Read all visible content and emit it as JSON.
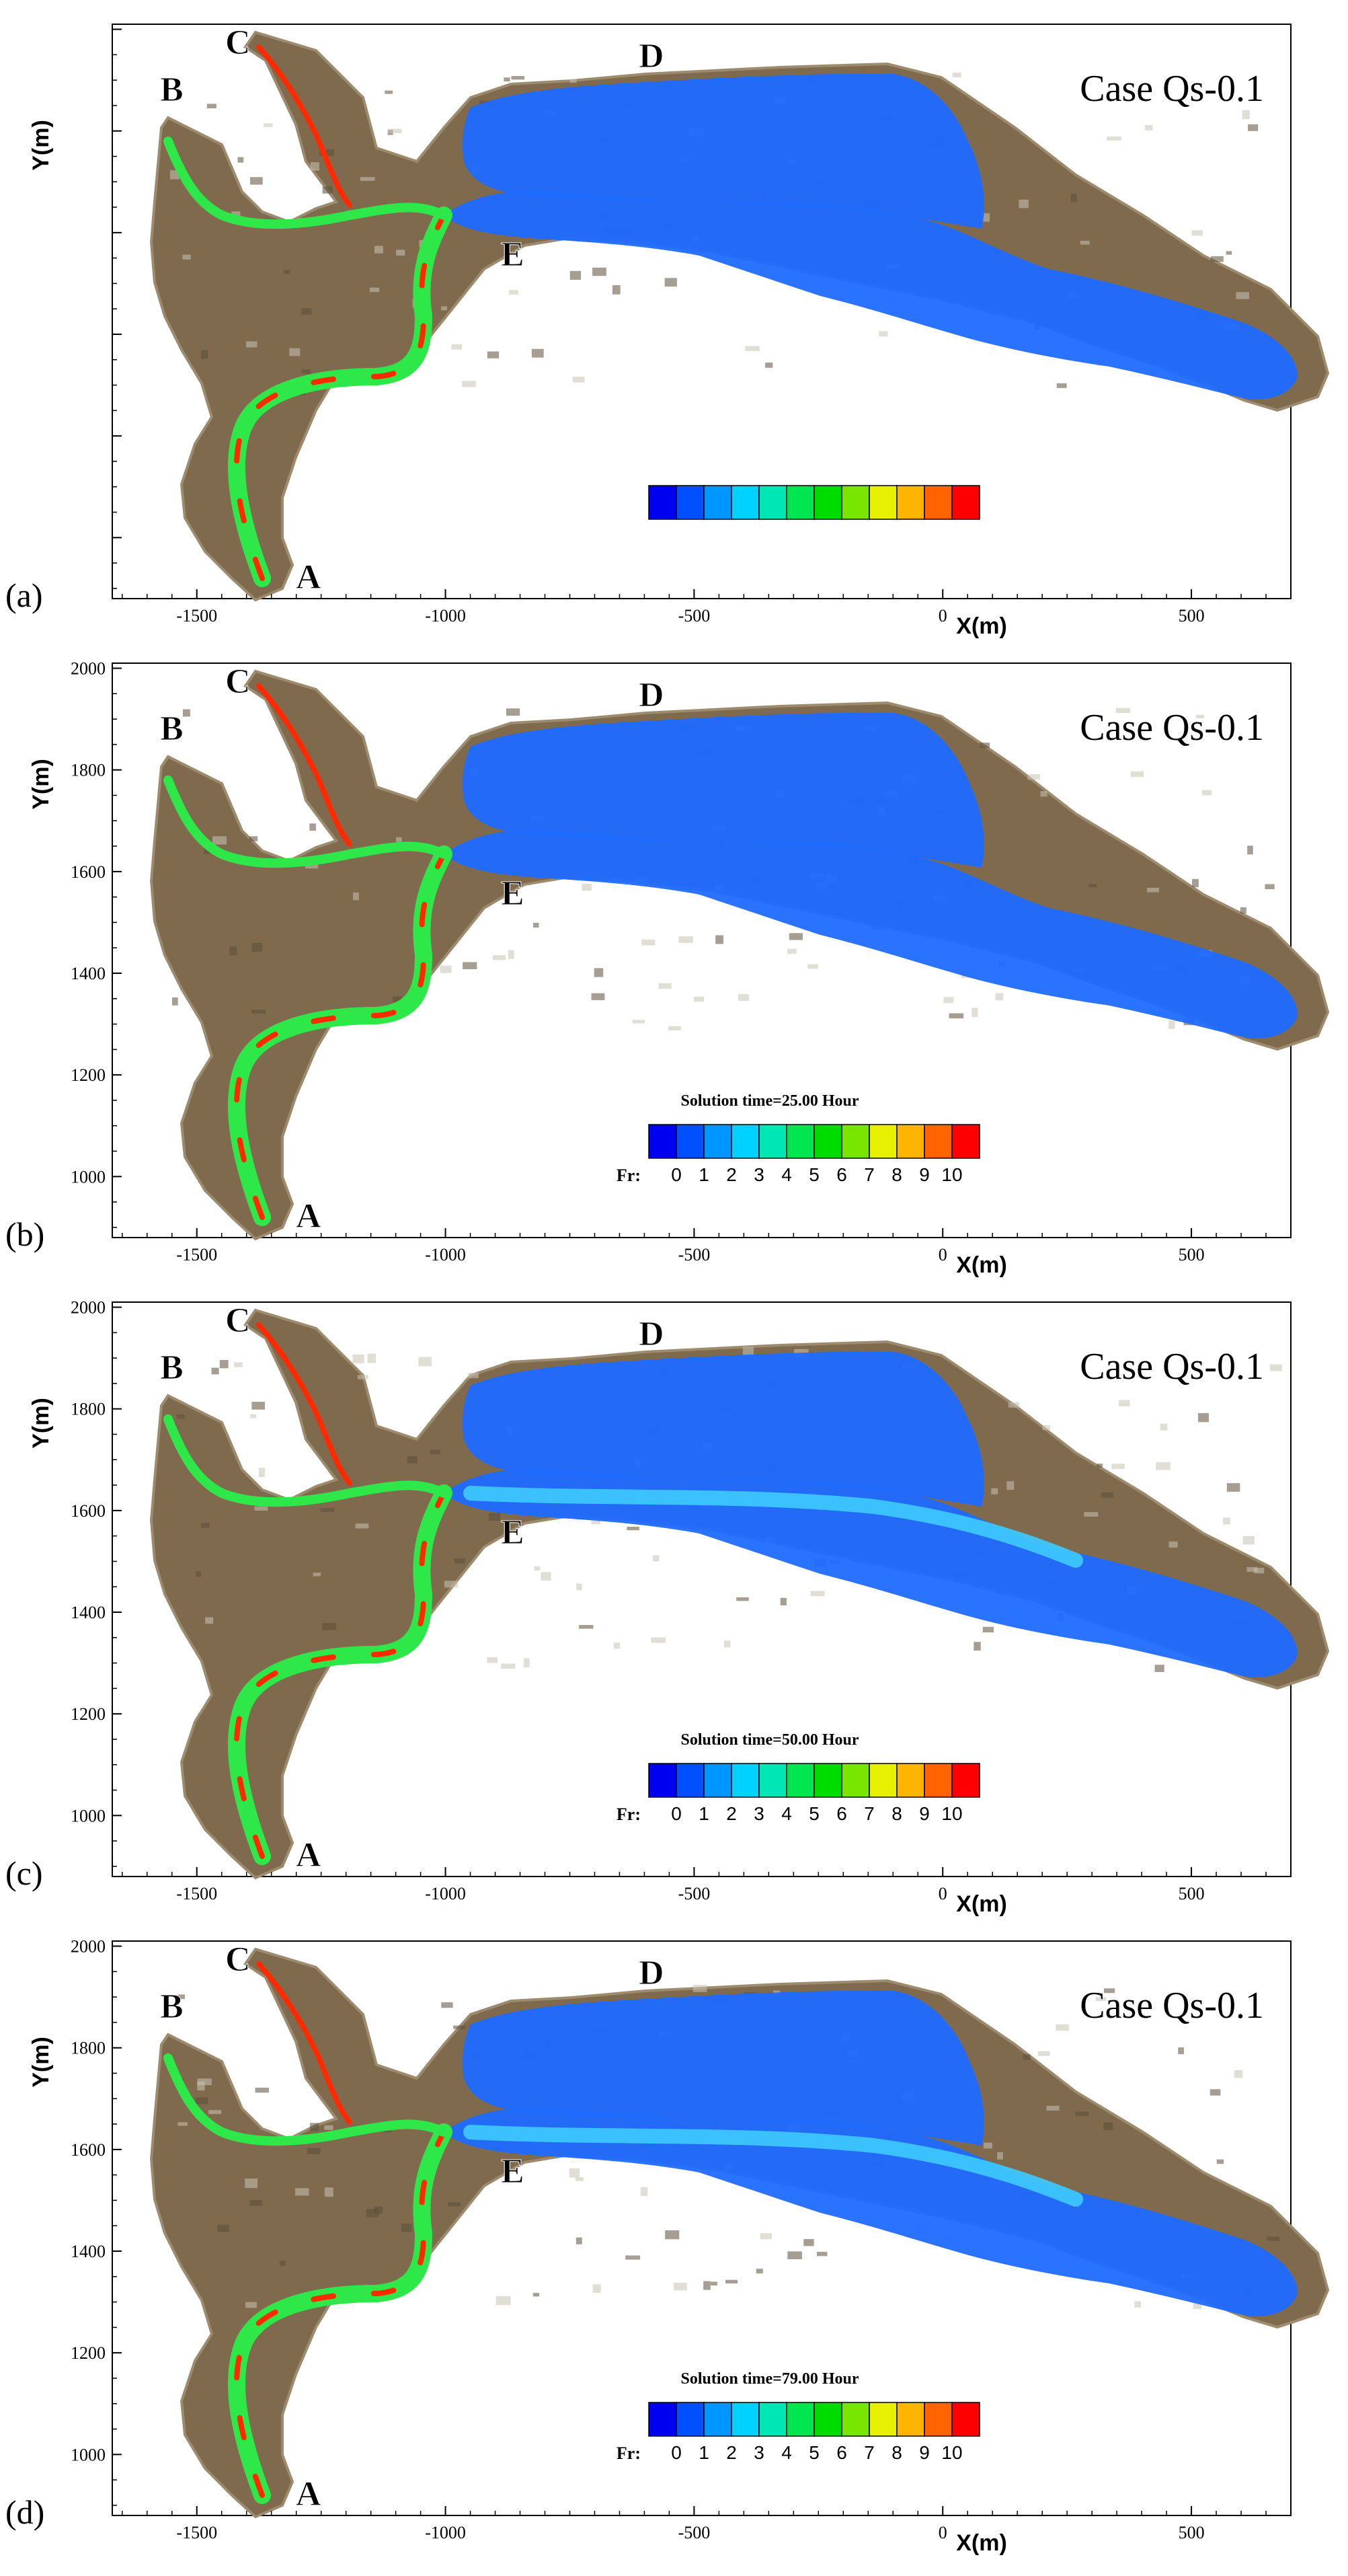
{
  "figure": {
    "axis": {
      "xlabel": "X(m)",
      "ylabel": "Y(m)",
      "x_ticks": [
        "-1500",
        "-1000",
        "-500",
        "0",
        "500"
      ],
      "x_tick_values": [
        -1500,
        -1000,
        -500,
        0,
        500
      ],
      "y_ticks": [
        "1000",
        "1200",
        "1400",
        "1600",
        "1800",
        "2000"
      ],
      "y_tick_values": [
        1000,
        1200,
        1400,
        1600,
        1800,
        2000
      ],
      "xlim": [
        -1670,
        700
      ],
      "ylim": [
        880,
        2010
      ]
    },
    "location_labels": [
      "A",
      "B",
      "C",
      "D",
      "E"
    ],
    "legend": {
      "prefix": "Fr:",
      "tick_labels": [
        "0",
        "1",
        "2",
        "3",
        "4",
        "5",
        "6",
        "7",
        "8",
        "9",
        "10"
      ],
      "colors": [
        "#0000f0",
        "#0050ff",
        "#0096ff",
        "#00d2ff",
        "#00e6b4",
        "#00e650",
        "#00dc00",
        "#78e600",
        "#e6f000",
        "#ffb400",
        "#ff6400",
        "#ff0000"
      ]
    },
    "colors": {
      "flow_low": "#1f6bff",
      "flow_mid": "#3ecbff",
      "terrain": "#7f6a4e",
      "terrain_light": "#9c8b6e",
      "river_hot": "#ff2a00",
      "river_warm": "#2ee84a"
    },
    "panels": [
      {
        "tag": "(a)",
        "case": "Case Qs-0.1",
        "solution_time": "",
        "show_y_ticks": false,
        "show_legend_labels": false
      },
      {
        "tag": "(b)",
        "case": "Case Qs-0.1",
        "solution_time": "Solution time=25.00 Hour",
        "show_y_ticks": true,
        "show_legend_labels": true
      },
      {
        "tag": "(c)",
        "case": "Case Qs-0.1",
        "solution_time": "Solution time=50.00 Hour",
        "show_y_ticks": true,
        "show_legend_labels": true
      },
      {
        "tag": "(d)",
        "case": "Case Qs-0.1",
        "solution_time": "Solution time=79.00 Hour",
        "show_y_ticks": true,
        "show_legend_labels": true
      }
    ]
  }
}
